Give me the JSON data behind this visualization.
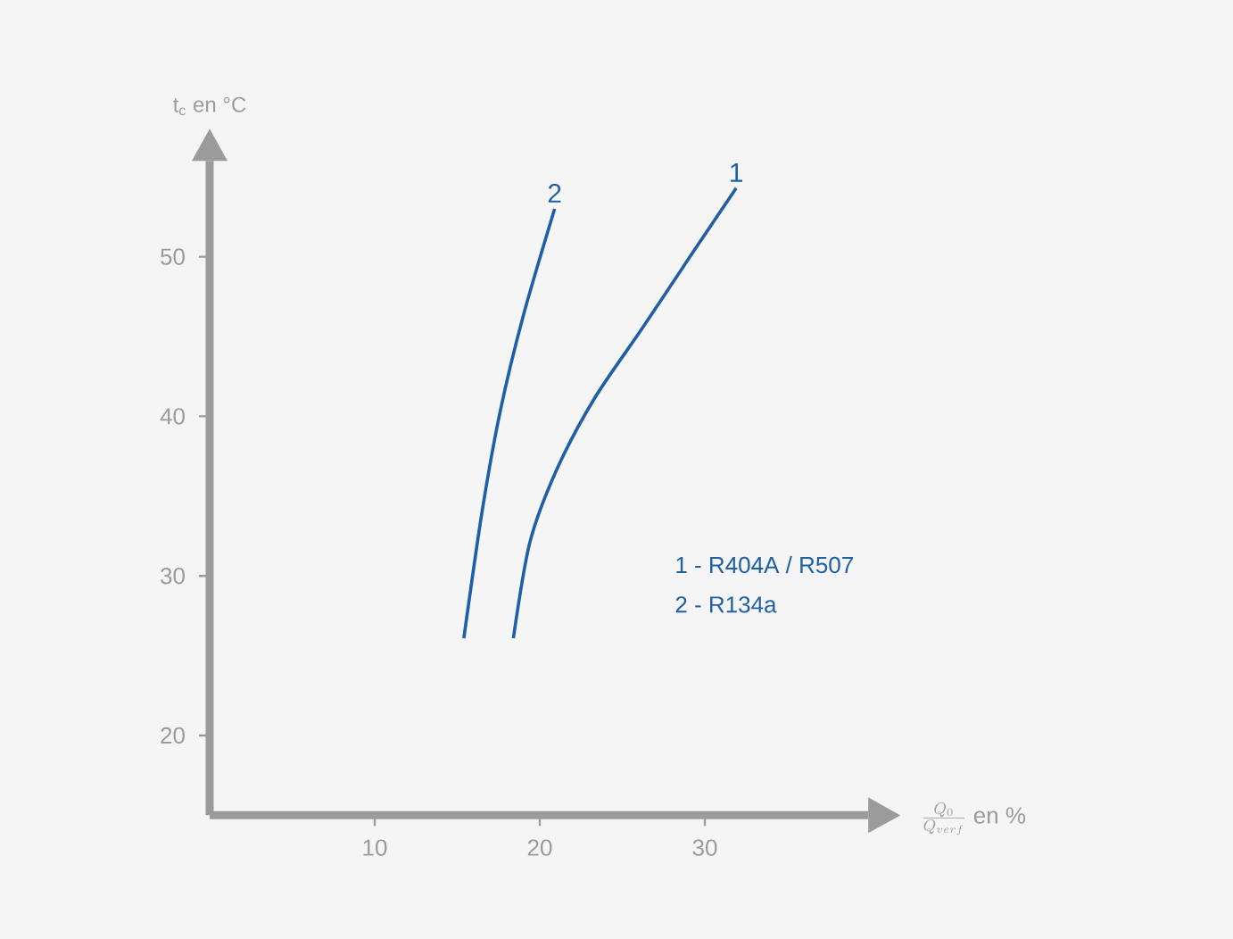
{
  "chart_data": {
    "type": "line",
    "xlabel": "\\frac{Q_0}{Q_{verf}}\\ \\mathrm{en}\\ \\%",
    "ylabel": "t$_{c}$ en °C",
    "xlim": [
      0,
      39.9
    ],
    "ylim": [
      15,
      56
    ],
    "xticks": [
      10,
      20,
      30
    ],
    "yticks": [
      20,
      30,
      40,
      50
    ],
    "grid": false,
    "legend": false,
    "marker": "none",
    "line_style": "solid",
    "annotations": [
      "1 - R404A / R507",
      "2 - R134a"
    ],
    "series": [
      {
        "name": "1",
        "color": "#1f5fa8",
        "x": [
          18.4,
          19.4,
          21.0,
          23.3,
          26.2,
          29.1,
          31.9
        ],
        "values": [
          26.1,
          32.1,
          36.6,
          41.1,
          45.5,
          50.0,
          54.3
        ]
      },
      {
        "name": "2",
        "color": "#1f5fa8",
        "x": [
          15.4,
          16.5,
          17.6,
          19.0,
          20.9
        ],
        "values": [
          26.1,
          34.0,
          40.3,
          46.3,
          53.0
        ]
      }
    ]
  }
}
